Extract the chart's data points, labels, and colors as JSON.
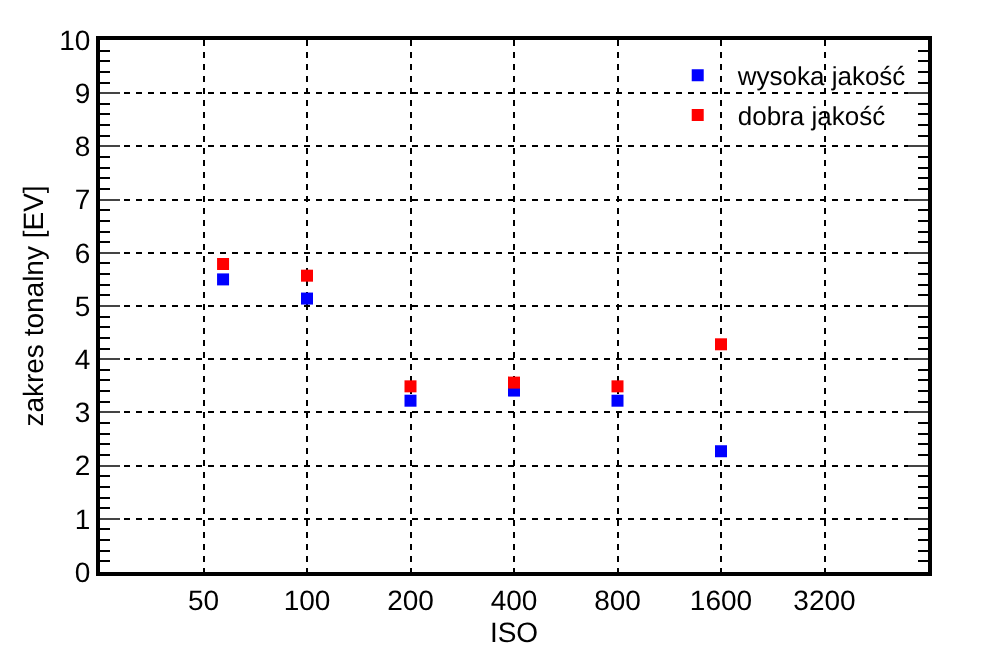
{
  "chart_data": {
    "type": "scatter",
    "xlabel": "ISO",
    "ylabel": "zakres tonalny [EV]",
    "log": "x",
    "x": [
      57,
      100,
      200,
      400,
      800,
      1600
    ],
    "series": [
      {
        "name": "wysoka jakość",
        "color": "#0000ff",
        "values": [
          5.5,
          5.14,
          3.22,
          3.41,
          3.22,
          2.27
        ]
      },
      {
        "name": "dobra jakość",
        "color": "#ff0000",
        "values": [
          5.79,
          5.57,
          3.49,
          3.56,
          3.49,
          4.28
        ]
      }
    ],
    "xlim": [
      25,
      6400
    ],
    "xticks": [
      50,
      100,
      200,
      400,
      800,
      1600,
      3200
    ],
    "ylim": [
      0,
      10
    ],
    "yticks": [
      0,
      1,
      2,
      3,
      4,
      5,
      6,
      7,
      8,
      9,
      10
    ],
    "grid": true,
    "legend": "top right",
    "marker": "square"
  }
}
